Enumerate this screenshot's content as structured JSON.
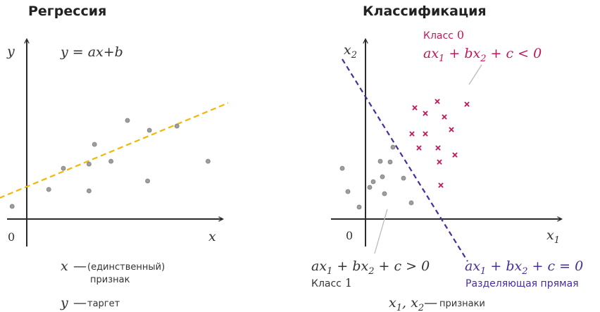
{
  "regression": {
    "title": "Регрессия",
    "y_axis_label": "y",
    "x_axis_label": "x",
    "origin_label": "0",
    "equation": {
      "lhs": "y",
      "rhs": "= ax+b"
    },
    "legend_x": {
      "var": "x",
      "dash": "—",
      "text1": "(единственный)",
      "text2": "признак"
    },
    "legend_y": {
      "var": "y",
      "dash": "—",
      "text": "таргет"
    }
  },
  "classification": {
    "title": "Классификация",
    "y_axis_label": {
      "base": "x",
      "sub": "2"
    },
    "x_axis_label": {
      "base": "x",
      "sub": "1"
    },
    "origin_label": "0",
    "class0": {
      "label_word": "Класс",
      "label_num": "0",
      "inequality": {
        "a": "ax",
        "s1": "1",
        "b": " + bx",
        "s2": "2",
        "c": " + c",
        "rel": " < 0"
      }
    },
    "class1": {
      "label_word": "Класс",
      "label_num": "1",
      "inequality": {
        "a": "ax",
        "s1": "1",
        "b": " + bx",
        "s2": "2",
        "c": " + c",
        "rel": " > 0"
      }
    },
    "boundary": {
      "equation": {
        "a": "ax",
        "s1": "1",
        "b": " + bx",
        "s2": "2",
        "c": " + c",
        "rel": " = 0"
      },
      "caption": "Разделяющая прямая"
    },
    "features_note": {
      "v1": "x",
      "s1": "1",
      "comma": ", ",
      "v2": "x",
      "s2": "2",
      "dash": "—",
      "text": "признаки"
    }
  },
  "colors": {
    "axis": "#2b2b2b",
    "point": "#9e9e9e",
    "regression_line": "#f2b705",
    "class0": "#c2185b",
    "boundary": "#4a2d9c",
    "pointer": "#bbbbbb"
  },
  "icons": {
    "class0_marker": "cross",
    "class1_marker": "circle"
  },
  "chart_data": [
    {
      "type": "scatter",
      "title": "Регрессия",
      "xlabel": "x",
      "ylabel": "y",
      "series": [
        {
          "values": [
            [
              -0.8,
              0.9
            ],
            [
              1.2,
              2.1
            ],
            [
              2.0,
              3.6
            ],
            [
              3.4,
              2.0
            ],
            [
              3.4,
              3.9
            ],
            [
              3.7,
              5.3
            ],
            [
              4.6,
              4.1
            ],
            [
              5.5,
              7.0
            ],
            [
              6.6,
              2.7
            ],
            [
              6.7,
              6.3
            ],
            [
              8.2,
              6.6
            ],
            [
              9.9,
              4.1
            ]
          ]
        }
      ],
      "trend_line": {
        "type": "line",
        "style": "dashed",
        "slope": 0.54,
        "intercept": 2.3,
        "x_range": [
          -1.5,
          11.0
        ]
      }
    },
    {
      "type": "scatter",
      "title": "Классификация",
      "xlabel": "x1",
      "ylabel": "x2",
      "series": [
        {
          "marker": "circle",
          "values": [
            [
              -1.65,
              3.6
            ],
            [
              -1.25,
              1.95
            ],
            [
              -0.45,
              0.85
            ],
            [
              0.3,
              2.25
            ],
            [
              0.55,
              2.65
            ],
            [
              1.05,
              4.1
            ],
            [
              1.2,
              3.0
            ],
            [
              1.35,
              1.8
            ],
            [
              1.75,
              4.05
            ],
            [
              1.95,
              5.1
            ],
            [
              2.7,
              2.9
            ],
            [
              3.25,
              1.15
            ]
          ]
        },
        {
          "marker": "cross",
          "values": [
            [
              3.3,
              6.05
            ],
            [
              3.5,
              7.9
            ],
            [
              3.8,
              5.05
            ],
            [
              4.25,
              7.5
            ],
            [
              4.25,
              6.05
            ],
            [
              5.1,
              8.35
            ],
            [
              5.15,
              5.05
            ],
            [
              5.25,
              4.05
            ],
            [
              5.35,
              2.4
            ],
            [
              5.6,
              7.25
            ],
            [
              6.1,
              6.35
            ],
            [
              6.35,
              4.55
            ],
            [
              7.2,
              8.15
            ]
          ]
        }
      ],
      "decision_boundary": {
        "type": "line",
        "style": "dashed",
        "points": [
          [
            -1.65,
            11.35
          ],
          [
            7.25,
            -3.0
          ]
        ]
      }
    }
  ]
}
